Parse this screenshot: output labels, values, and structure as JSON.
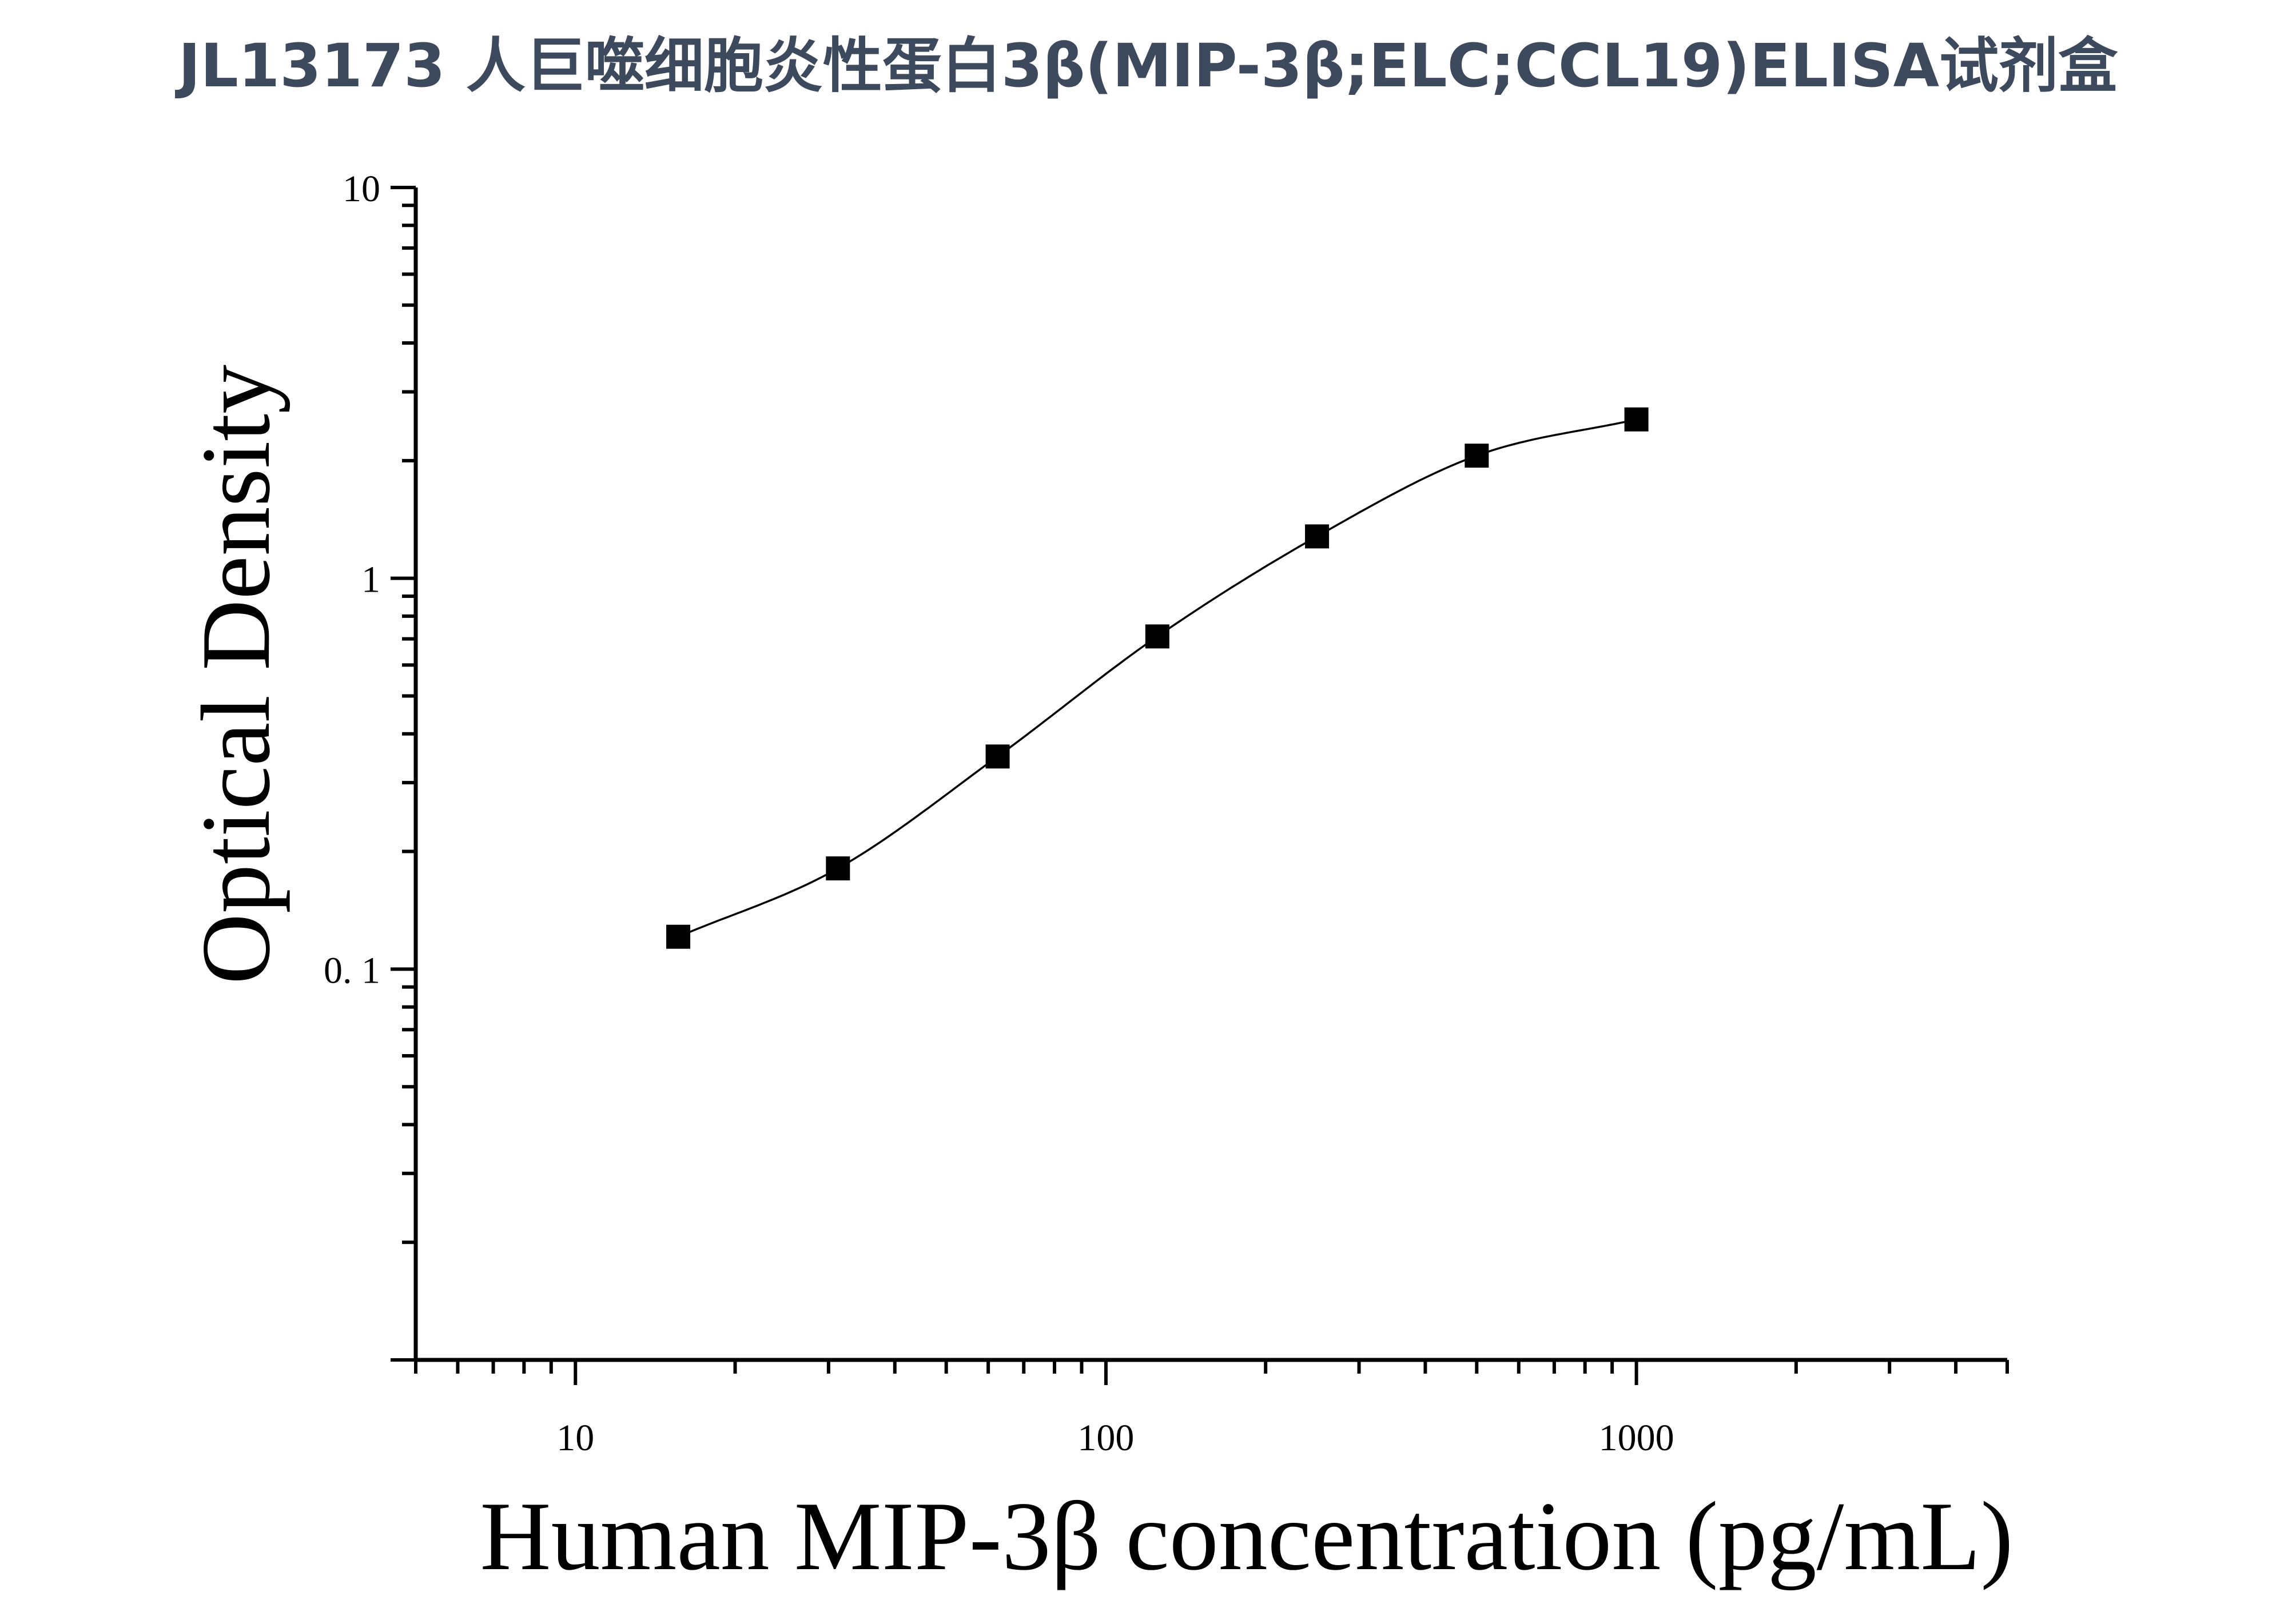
{
  "title": "JL13173 人巨噬细胞炎性蛋白3β(MIP-3β;ELC;CCL19)ELISA试剂盒",
  "chart_data": {
    "type": "scatter",
    "title": "JL13173 人巨噬细胞炎性蛋白3β(MIP-3β;ELC;CCL19)ELISA试剂盒",
    "xlabel": "Human MIP-3β concentration (pg/mL)",
    "ylabel": "Optical Density",
    "x_scale": "log",
    "y_scale": "log",
    "xlim": [
      5,
      5000
    ],
    "ylim": [
      0.01,
      10
    ],
    "x_ticks": [
      10,
      100,
      1000
    ],
    "x_tick_labels": [
      "10",
      "100",
      "1000"
    ],
    "y_ticks": [
      0.1,
      1,
      10
    ],
    "y_tick_labels": [
      "0. 1",
      "1",
      "10"
    ],
    "grid": false,
    "legend": "none",
    "marker": "square",
    "color": "#000000",
    "fit_curve": true,
    "points": [
      {
        "x": 15.625,
        "y": 0.121
      },
      {
        "x": 31.25,
        "y": 0.181
      },
      {
        "x": 62.5,
        "y": 0.35
      },
      {
        "x": 125,
        "y": 0.71
      },
      {
        "x": 250,
        "y": 1.28
      },
      {
        "x": 500,
        "y": 2.06
      },
      {
        "x": 1000,
        "y": 2.55
      }
    ]
  }
}
